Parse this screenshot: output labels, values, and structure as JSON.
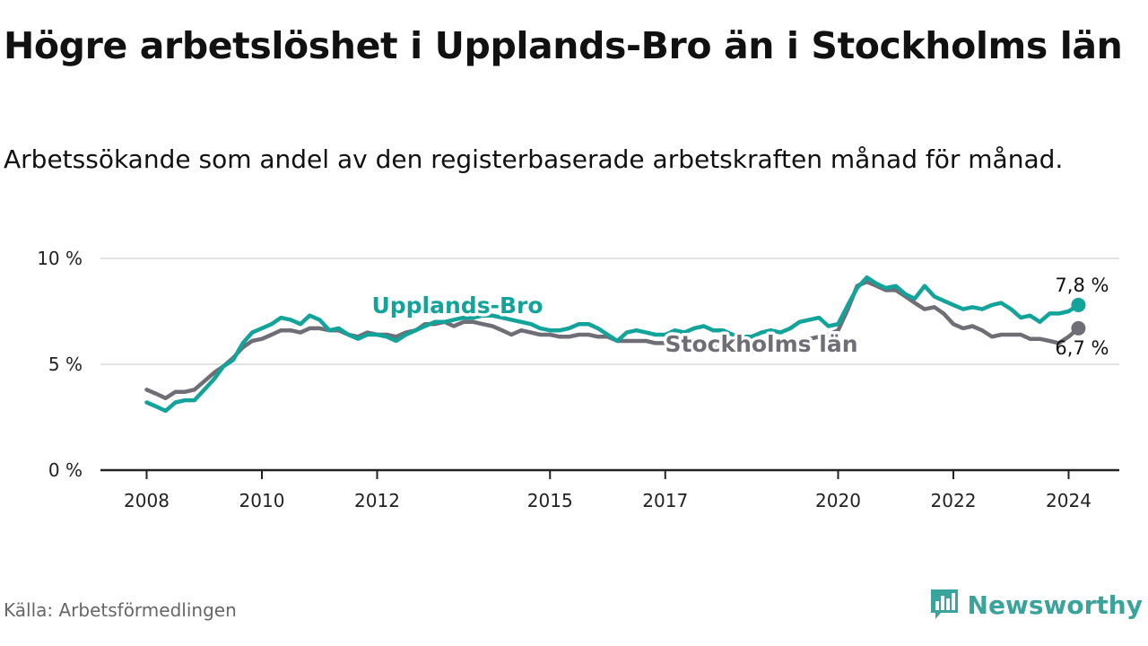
{
  "title": "Högre arbetslöshet i Upplands-Bro än i Stockholms län",
  "subtitle": "Arbetssökande som andel av den registerbaserade arbetskraften månad för månad.",
  "source": "Källa: Arbetsförmedlingen",
  "brand": {
    "name": "Newsworthy",
    "icon": "bar-chart-logo-icon",
    "color": "#3aa39b"
  },
  "colors": {
    "upplands": "#12a39b",
    "stockholm": "#6f6e76",
    "grid": "#d8d8d8",
    "axis": "#222222"
  },
  "chart_data": {
    "type": "line",
    "title": "Högre arbetslöshet i Upplands-Bro än i Stockholms län",
    "xlabel": "",
    "ylabel": "",
    "xlim": [
      2007.9,
      2025.0
    ],
    "ylim": [
      0,
      10
    ],
    "x_ticks": [
      2008,
      2010,
      2012,
      2015,
      2017,
      2020,
      2022,
      2024
    ],
    "y_ticks": [
      {
        "value": 0,
        "label": "0 %"
      },
      {
        "value": 5,
        "label": "5 %"
      },
      {
        "value": 10,
        "label": "10 %"
      }
    ],
    "grid": true,
    "series": [
      {
        "name": "Upplands-Bro",
        "end_label": "7,8 %",
        "points": [
          [
            2008.0,
            3.2
          ],
          [
            2008.17,
            3.0
          ],
          [
            2008.33,
            2.8
          ],
          [
            2008.5,
            3.2
          ],
          [
            2008.67,
            3.3
          ],
          [
            2008.83,
            3.3
          ],
          [
            2009.0,
            3.8
          ],
          [
            2009.17,
            4.3
          ],
          [
            2009.33,
            4.9
          ],
          [
            2009.5,
            5.2
          ],
          [
            2009.67,
            6.0
          ],
          [
            2009.83,
            6.5
          ],
          [
            2010.0,
            6.7
          ],
          [
            2010.17,
            6.9
          ],
          [
            2010.33,
            7.2
          ],
          [
            2010.5,
            7.1
          ],
          [
            2010.67,
            6.9
          ],
          [
            2010.83,
            7.3
          ],
          [
            2011.0,
            7.1
          ],
          [
            2011.17,
            6.6
          ],
          [
            2011.33,
            6.7
          ],
          [
            2011.5,
            6.4
          ],
          [
            2011.67,
            6.2
          ],
          [
            2011.83,
            6.4
          ],
          [
            2012.0,
            6.4
          ],
          [
            2012.17,
            6.3
          ],
          [
            2012.33,
            6.1
          ],
          [
            2012.5,
            6.4
          ],
          [
            2012.67,
            6.6
          ],
          [
            2012.83,
            6.8
          ],
          [
            2013.0,
            7.0
          ],
          [
            2013.17,
            7.0
          ],
          [
            2013.33,
            7.1
          ],
          [
            2013.5,
            7.2
          ],
          [
            2013.67,
            7.2
          ],
          [
            2013.83,
            7.3
          ],
          [
            2014.0,
            7.3
          ],
          [
            2014.17,
            7.2
          ],
          [
            2014.33,
            7.1
          ],
          [
            2014.5,
            7.0
          ],
          [
            2014.67,
            6.9
          ],
          [
            2014.83,
            6.7
          ],
          [
            2015.0,
            6.6
          ],
          [
            2015.17,
            6.6
          ],
          [
            2015.33,
            6.7
          ],
          [
            2015.5,
            6.9
          ],
          [
            2015.67,
            6.9
          ],
          [
            2015.83,
            6.7
          ],
          [
            2016.0,
            6.4
          ],
          [
            2016.17,
            6.1
          ],
          [
            2016.33,
            6.5
          ],
          [
            2016.5,
            6.6
          ],
          [
            2016.67,
            6.5
          ],
          [
            2016.83,
            6.4
          ],
          [
            2017.0,
            6.4
          ],
          [
            2017.17,
            6.6
          ],
          [
            2017.33,
            6.5
          ],
          [
            2017.5,
            6.7
          ],
          [
            2017.67,
            6.8
          ],
          [
            2017.83,
            6.6
          ],
          [
            2018.0,
            6.6
          ],
          [
            2018.17,
            6.4
          ],
          [
            2018.33,
            6.3
          ],
          [
            2018.5,
            6.3
          ],
          [
            2018.67,
            6.5
          ],
          [
            2018.83,
            6.6
          ],
          [
            2019.0,
            6.5
          ],
          [
            2019.17,
            6.7
          ],
          [
            2019.33,
            7.0
          ],
          [
            2019.5,
            7.1
          ],
          [
            2019.67,
            7.2
          ],
          [
            2019.83,
            6.8
          ],
          [
            2020.0,
            6.9
          ],
          [
            2020.17,
            7.8
          ],
          [
            2020.33,
            8.6
          ],
          [
            2020.5,
            9.1
          ],
          [
            2020.67,
            8.8
          ],
          [
            2020.83,
            8.6
          ],
          [
            2021.0,
            8.7
          ],
          [
            2021.17,
            8.3
          ],
          [
            2021.33,
            8.1
          ],
          [
            2021.5,
            8.7
          ],
          [
            2021.67,
            8.2
          ],
          [
            2021.83,
            8.0
          ],
          [
            2022.0,
            7.8
          ],
          [
            2022.17,
            7.6
          ],
          [
            2022.33,
            7.7
          ],
          [
            2022.5,
            7.6
          ],
          [
            2022.67,
            7.8
          ],
          [
            2022.83,
            7.9
          ],
          [
            2023.0,
            7.6
          ],
          [
            2023.17,
            7.2
          ],
          [
            2023.33,
            7.3
          ],
          [
            2023.5,
            7.0
          ],
          [
            2023.67,
            7.4
          ],
          [
            2023.83,
            7.4
          ],
          [
            2024.0,
            7.5
          ],
          [
            2024.17,
            7.8
          ]
        ]
      },
      {
        "name": "Stockholms län",
        "end_label": "6,7 %",
        "points": [
          [
            2008.0,
            3.8
          ],
          [
            2008.17,
            3.6
          ],
          [
            2008.33,
            3.4
          ],
          [
            2008.5,
            3.7
          ],
          [
            2008.67,
            3.7
          ],
          [
            2008.83,
            3.8
          ],
          [
            2009.0,
            4.2
          ],
          [
            2009.17,
            4.6
          ],
          [
            2009.33,
            4.9
          ],
          [
            2009.5,
            5.3
          ],
          [
            2009.67,
            5.8
          ],
          [
            2009.83,
            6.1
          ],
          [
            2010.0,
            6.2
          ],
          [
            2010.17,
            6.4
          ],
          [
            2010.33,
            6.6
          ],
          [
            2010.5,
            6.6
          ],
          [
            2010.67,
            6.5
          ],
          [
            2010.83,
            6.7
          ],
          [
            2011.0,
            6.7
          ],
          [
            2011.17,
            6.6
          ],
          [
            2011.33,
            6.6
          ],
          [
            2011.5,
            6.4
          ],
          [
            2011.67,
            6.3
          ],
          [
            2011.83,
            6.5
          ],
          [
            2012.0,
            6.4
          ],
          [
            2012.17,
            6.4
          ],
          [
            2012.33,
            6.3
          ],
          [
            2012.5,
            6.5
          ],
          [
            2012.67,
            6.6
          ],
          [
            2012.83,
            6.9
          ],
          [
            2013.0,
            6.9
          ],
          [
            2013.17,
            7.0
          ],
          [
            2013.33,
            6.8
          ],
          [
            2013.5,
            7.0
          ],
          [
            2013.67,
            7.0
          ],
          [
            2013.83,
            6.9
          ],
          [
            2014.0,
            6.8
          ],
          [
            2014.17,
            6.6
          ],
          [
            2014.33,
            6.4
          ],
          [
            2014.5,
            6.6
          ],
          [
            2014.67,
            6.5
          ],
          [
            2014.83,
            6.4
          ],
          [
            2015.0,
            6.4
          ],
          [
            2015.17,
            6.3
          ],
          [
            2015.33,
            6.3
          ],
          [
            2015.5,
            6.4
          ],
          [
            2015.67,
            6.4
          ],
          [
            2015.83,
            6.3
          ],
          [
            2016.0,
            6.3
          ],
          [
            2016.17,
            6.1
          ],
          [
            2016.33,
            6.1
          ],
          [
            2016.5,
            6.1
          ],
          [
            2016.67,
            6.1
          ],
          [
            2016.83,
            6.0
          ],
          [
            2017.0,
            6.0
          ],
          [
            2017.17,
            6.0
          ],
          [
            2017.33,
            5.9
          ],
          [
            2017.5,
            5.9
          ],
          [
            2017.67,
            5.9
          ],
          [
            2017.83,
            5.8
          ],
          [
            2018.0,
            5.8
          ],
          [
            2018.17,
            5.7
          ],
          [
            2018.33,
            5.7
          ],
          [
            2018.5,
            5.6
          ],
          [
            2018.67,
            5.6
          ],
          [
            2018.83,
            5.7
          ],
          [
            2019.0,
            5.8
          ],
          [
            2019.17,
            5.9
          ],
          [
            2019.33,
            6.0
          ],
          [
            2019.5,
            6.2
          ],
          [
            2019.67,
            6.3
          ],
          [
            2019.83,
            6.4
          ],
          [
            2020.0,
            6.6
          ],
          [
            2020.17,
            7.6
          ],
          [
            2020.33,
            8.7
          ],
          [
            2020.5,
            8.9
          ],
          [
            2020.67,
            8.7
          ],
          [
            2020.83,
            8.5
          ],
          [
            2021.0,
            8.5
          ],
          [
            2021.17,
            8.2
          ],
          [
            2021.33,
            7.9
          ],
          [
            2021.5,
            7.6
          ],
          [
            2021.67,
            7.7
          ],
          [
            2021.83,
            7.4
          ],
          [
            2022.0,
            6.9
          ],
          [
            2022.17,
            6.7
          ],
          [
            2022.33,
            6.8
          ],
          [
            2022.5,
            6.6
          ],
          [
            2022.67,
            6.3
          ],
          [
            2022.83,
            6.4
          ],
          [
            2023.0,
            6.4
          ],
          [
            2023.17,
            6.4
          ],
          [
            2023.33,
            6.2
          ],
          [
            2023.5,
            6.2
          ],
          [
            2023.67,
            6.1
          ],
          [
            2023.83,
            6.0
          ],
          [
            2024.0,
            6.3
          ],
          [
            2024.17,
            6.7
          ]
        ]
      }
    ]
  }
}
